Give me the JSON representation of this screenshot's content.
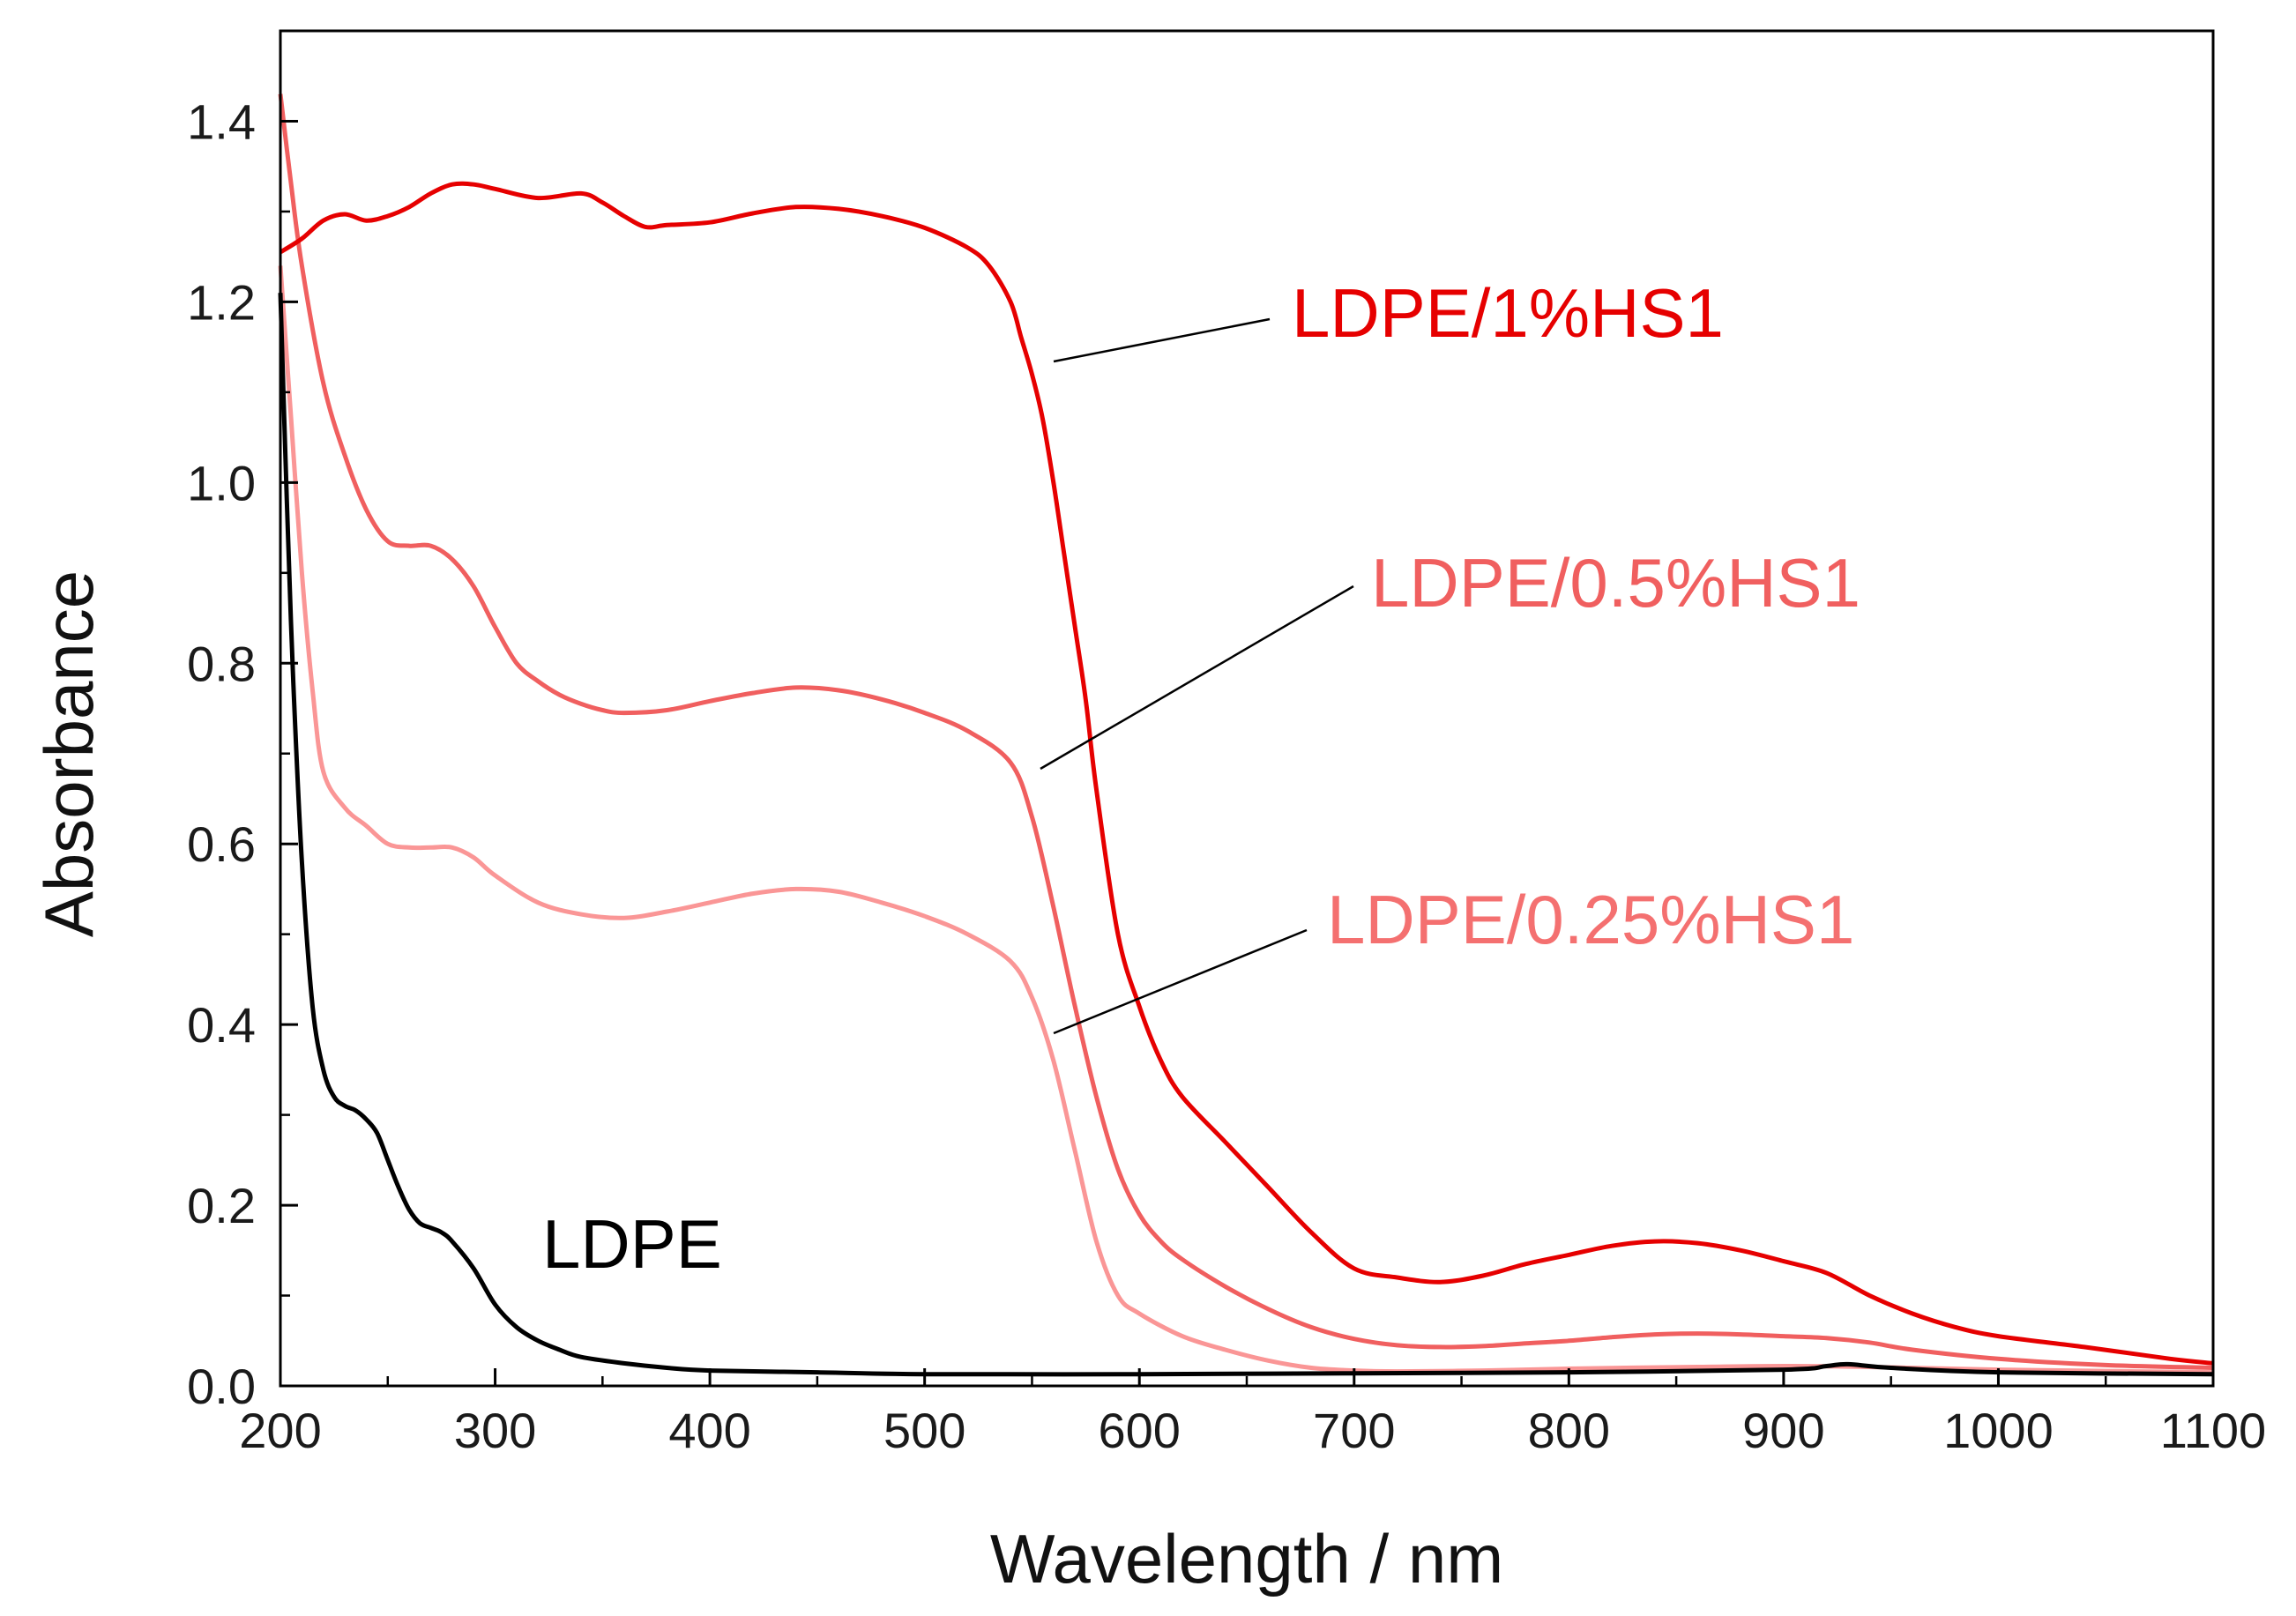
{
  "chart_data": {
    "type": "line",
    "title": "",
    "xlabel": "Wavelength / nm",
    "ylabel": "Absorbance",
    "xlim": [
      200,
      1100
    ],
    "ylim": [
      0.0,
      1.5
    ],
    "x_ticks": [
      "200",
      "300",
      "400",
      "500",
      "600",
      "700",
      "800",
      "900",
      "1000",
      "1100"
    ],
    "y_ticks": [
      "0.0",
      "0.2",
      "0.4",
      "0.6",
      "0.8",
      "1.0",
      "1.2",
      "1.4"
    ],
    "x_tick_values": [
      200,
      300,
      400,
      500,
      600,
      700,
      800,
      900,
      1000,
      1100
    ],
    "y_tick_values": [
      0.0,
      0.2,
      0.4,
      0.6,
      0.8,
      1.0,
      1.2,
      1.4
    ],
    "grid": false,
    "series": [
      {
        "name": "LDPE/1%HS1",
        "color": "#e60000",
        "x": [
          200,
          210,
          220,
          230,
          240,
          250,
          260,
          270,
          280,
          290,
          300,
          320,
          340,
          350,
          360,
          370,
          380,
          400,
          420,
          440,
          460,
          480,
          500,
          520,
          530,
          540,
          545,
          550,
          555,
          560,
          565,
          570,
          575,
          580,
          590,
          600,
          610,
          620,
          640,
          660,
          680,
          700,
          720,
          740,
          760,
          780,
          800,
          820,
          840,
          860,
          880,
          900,
          920,
          940,
          960,
          980,
          1000,
          1040,
          1080,
          1100
        ],
        "y": [
          1.255,
          1.27,
          1.29,
          1.297,
          1.29,
          1.295,
          1.305,
          1.32,
          1.33,
          1.33,
          1.325,
          1.315,
          1.32,
          1.31,
          1.295,
          1.283,
          1.285,
          1.288,
          1.298,
          1.305,
          1.303,
          1.295,
          1.282,
          1.26,
          1.24,
          1.2,
          1.16,
          1.12,
          1.07,
          1.0,
          0.92,
          0.84,
          0.76,
          0.66,
          0.5,
          0.42,
          0.36,
          0.32,
          0.27,
          0.22,
          0.17,
          0.13,
          0.12,
          0.115,
          0.122,
          0.135,
          0.145,
          0.155,
          0.16,
          0.158,
          0.15,
          0.138,
          0.125,
          0.1,
          0.08,
          0.065,
          0.055,
          0.043,
          0.03,
          0.025
        ]
      },
      {
        "name": "LDPE/0.5%HS1",
        "color": "#f05f5f",
        "x": [
          200,
          205,
          210,
          220,
          230,
          240,
          250,
          260,
          270,
          280,
          290,
          300,
          310,
          320,
          330,
          340,
          350,
          360,
          380,
          400,
          420,
          440,
          460,
          480,
          500,
          520,
          540,
          550,
          560,
          570,
          580,
          590,
          600,
          610,
          620,
          640,
          660,
          680,
          700,
          720,
          740,
          760,
          780,
          800,
          820,
          840,
          860,
          880,
          900,
          920,
          940,
          960,
          1000,
          1050,
          1100
        ],
        "y": [
          1.43,
          1.33,
          1.24,
          1.11,
          1.03,
          0.97,
          0.935,
          0.93,
          0.93,
          0.915,
          0.885,
          0.84,
          0.8,
          0.78,
          0.765,
          0.755,
          0.748,
          0.745,
          0.748,
          0.758,
          0.767,
          0.773,
          0.77,
          0.76,
          0.745,
          0.725,
          0.69,
          0.63,
          0.53,
          0.42,
          0.32,
          0.24,
          0.19,
          0.16,
          0.14,
          0.11,
          0.085,
          0.065,
          0.052,
          0.045,
          0.043,
          0.044,
          0.047,
          0.05,
          0.054,
          0.057,
          0.058,
          0.057,
          0.055,
          0.053,
          0.048,
          0.04,
          0.03,
          0.023,
          0.02
        ]
      },
      {
        "name": "LDPE/0.25%HS1",
        "color": "#fa9696",
        "x": [
          200,
          205,
          210,
          215,
          220,
          230,
          240,
          250,
          260,
          270,
          280,
          290,
          300,
          320,
          340,
          360,
          380,
          400,
          420,
          440,
          460,
          480,
          500,
          520,
          540,
          550,
          560,
          570,
          580,
          590,
          600,
          620,
          640,
          660,
          680,
          700,
          720,
          760,
          800,
          860,
          900,
          940,
          1000,
          1100
        ],
        "y": [
          1.24,
          1.07,
          0.9,
          0.77,
          0.68,
          0.64,
          0.62,
          0.6,
          0.596,
          0.596,
          0.596,
          0.585,
          0.565,
          0.535,
          0.522,
          0.518,
          0.525,
          0.535,
          0.545,
          0.55,
          0.547,
          0.535,
          0.52,
          0.5,
          0.47,
          0.43,
          0.36,
          0.26,
          0.16,
          0.1,
          0.08,
          0.055,
          0.04,
          0.028,
          0.02,
          0.017,
          0.016,
          0.017,
          0.019,
          0.021,
          0.022,
          0.021,
          0.018,
          0.015
        ]
      },
      {
        "name": "LDPE",
        "color": "#000000",
        "x": [
          200,
          203,
          206,
          210,
          215,
          220,
          225,
          230,
          235,
          240,
          245,
          250,
          255,
          260,
          265,
          270,
          275,
          280,
          290,
          300,
          310,
          320,
          330,
          340,
          360,
          380,
          400,
          450,
          500,
          600,
          700,
          800,
          900,
          920,
          930,
          950,
          1000,
          1100
        ],
        "y": [
          1.21,
          0.98,
          0.78,
          0.58,
          0.42,
          0.35,
          0.32,
          0.31,
          0.305,
          0.295,
          0.28,
          0.25,
          0.22,
          0.195,
          0.18,
          0.175,
          0.17,
          0.16,
          0.13,
          0.09,
          0.065,
          0.05,
          0.04,
          0.032,
          0.025,
          0.02,
          0.017,
          0.015,
          0.013,
          0.013,
          0.014,
          0.015,
          0.018,
          0.022,
          0.024,
          0.02,
          0.015,
          0.013
        ]
      }
    ],
    "annotations": [
      {
        "text": "LDPE/1%HS1",
        "series": "LDPE/1%HS1",
        "color": "#e60000"
      },
      {
        "text": "LDPE/0.5%HS1",
        "series": "LDPE/0.5%HS1",
        "color": "#f05f5f"
      },
      {
        "text": "LDPE/0.25%HS1",
        "series": "LDPE/0.25%HS1",
        "color": "#f47070"
      },
      {
        "text": "LDPE",
        "series": "LDPE",
        "color": "#000000"
      }
    ]
  }
}
